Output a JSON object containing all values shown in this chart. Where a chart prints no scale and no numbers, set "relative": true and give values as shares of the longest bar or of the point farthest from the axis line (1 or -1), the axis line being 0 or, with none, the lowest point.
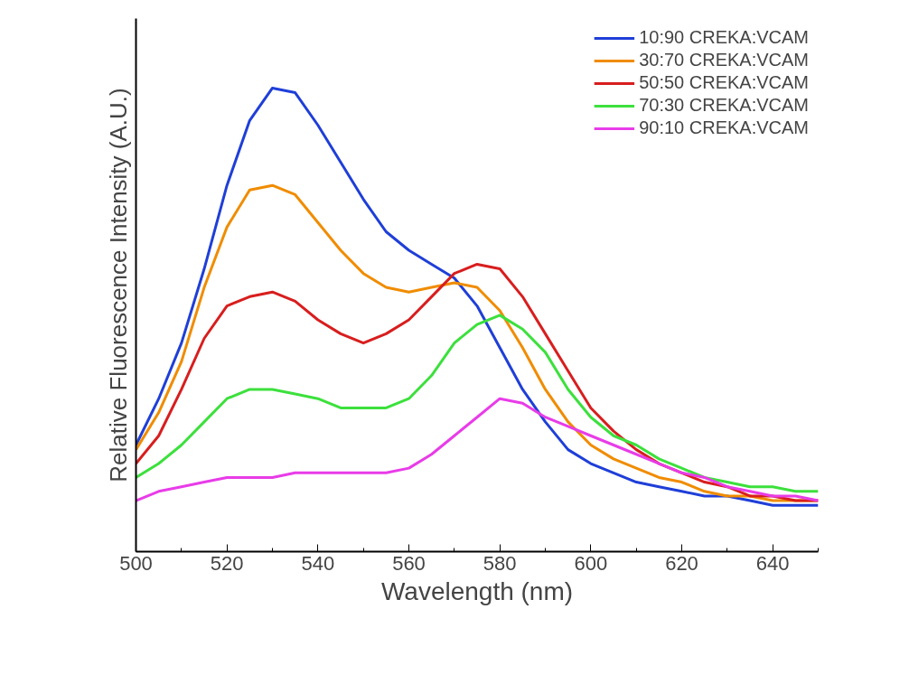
{
  "chart_data": {
    "type": "line",
    "xlabel": "Wavelength (nm)",
    "ylabel": "Relative Fluorescence Intensity (A.U.)",
    "relative": true,
    "xlim": [
      500,
      650
    ],
    "xticks": [
      500,
      520,
      540,
      560,
      580,
      600,
      620,
      640
    ],
    "grid": false,
    "legend": "top right",
    "marker": "none",
    "line_style": "solid",
    "x": [
      500,
      505,
      510,
      515,
      520,
      525,
      530,
      535,
      540,
      545,
      550,
      555,
      560,
      565,
      570,
      575,
      580,
      585,
      590,
      595,
      600,
      605,
      610,
      615,
      620,
      625,
      630,
      635,
      640,
      645,
      650
    ],
    "series": [
      {
        "name": "10:90 CREKA:VCAM",
        "color": "#1f3fd8",
        "values": [
          0.23,
          0.33,
          0.45,
          0.61,
          0.79,
          0.93,
          1.0,
          0.99,
          0.92,
          0.84,
          0.76,
          0.69,
          0.65,
          0.62,
          0.59,
          0.53,
          0.44,
          0.35,
          0.28,
          0.22,
          0.19,
          0.17,
          0.15,
          0.14,
          0.13,
          0.12,
          0.12,
          0.11,
          0.1,
          0.1,
          0.1
        ]
      },
      {
        "name": "30:70 CREKA:VCAM",
        "color": "#f08c00",
        "values": [
          0.22,
          0.3,
          0.41,
          0.57,
          0.7,
          0.78,
          0.79,
          0.77,
          0.71,
          0.65,
          0.6,
          0.57,
          0.56,
          0.57,
          0.58,
          0.57,
          0.52,
          0.44,
          0.35,
          0.28,
          0.23,
          0.2,
          0.18,
          0.16,
          0.15,
          0.13,
          0.12,
          0.12,
          0.11,
          0.11,
          0.11
        ]
      },
      {
        "name": "50:50 CREKA:VCAM",
        "color": "#d81e1e",
        "values": [
          0.19,
          0.25,
          0.35,
          0.46,
          0.53,
          0.55,
          0.56,
          0.54,
          0.5,
          0.47,
          0.45,
          0.47,
          0.5,
          0.55,
          0.6,
          0.62,
          0.61,
          0.55,
          0.47,
          0.39,
          0.31,
          0.26,
          0.22,
          0.19,
          0.17,
          0.15,
          0.14,
          0.12,
          0.12,
          0.11,
          0.11
        ]
      },
      {
        "name": "70:30 CREKA:VCAM",
        "color": "#3ce03c",
        "values": [
          0.16,
          0.19,
          0.23,
          0.28,
          0.33,
          0.35,
          0.35,
          0.34,
          0.33,
          0.31,
          0.31,
          0.31,
          0.33,
          0.38,
          0.45,
          0.49,
          0.51,
          0.48,
          0.43,
          0.35,
          0.29,
          0.25,
          0.23,
          0.2,
          0.18,
          0.16,
          0.15,
          0.14,
          0.14,
          0.13,
          0.13
        ]
      },
      {
        "name": "90:10 CREKA:VCAM",
        "color": "#e83ce8",
        "values": [
          0.11,
          0.13,
          0.14,
          0.15,
          0.16,
          0.16,
          0.16,
          0.17,
          0.17,
          0.17,
          0.17,
          0.17,
          0.18,
          0.21,
          0.25,
          0.29,
          0.33,
          0.32,
          0.29,
          0.27,
          0.25,
          0.23,
          0.21,
          0.19,
          0.17,
          0.16,
          0.14,
          0.13,
          0.12,
          0.12,
          0.11
        ]
      }
    ]
  }
}
